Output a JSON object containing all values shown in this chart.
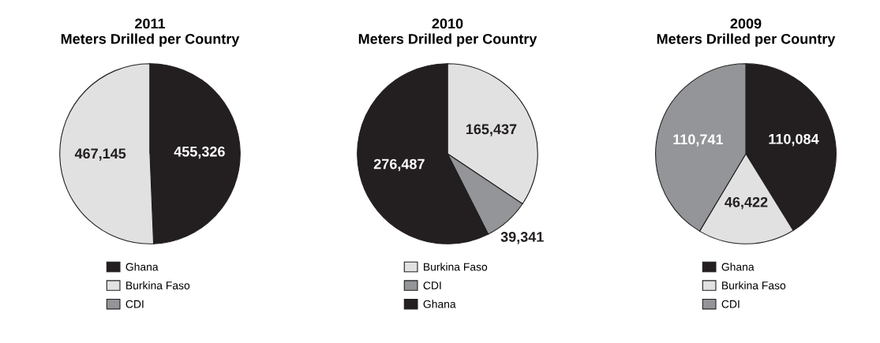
{
  "chart_data": [
    {
      "type": "pie",
      "title": "2011\nMeters Drilled per Country",
      "categories": [
        "Ghana",
        "Burkina Faso",
        "CDI"
      ],
      "values": [
        455326,
        467145,
        0
      ],
      "colors": [
        "#231f20",
        "#e1e1e2",
        "#939598"
      ],
      "value_labels": [
        "455,326",
        "467,145",
        null
      ],
      "legend": "bottom"
    },
    {
      "type": "pie",
      "title": "2010\nMeters Drilled per Country",
      "categories": [
        "Burkina Faso",
        "CDI",
        "Ghana"
      ],
      "values": [
        165437,
        39341,
        276487
      ],
      "colors": [
        "#e1e1e2",
        "#939598",
        "#231f20"
      ],
      "value_labels": [
        "165,437",
        "39,341",
        "276,487"
      ],
      "legend": "bottom"
    },
    {
      "type": "pie",
      "title": "2009\nMeters Drilled per Country",
      "categories": [
        "Ghana",
        "Burkina Faso",
        "CDI"
      ],
      "values": [
        110084,
        46422,
        110741
      ],
      "colors": [
        "#231f20",
        "#e1e1e2",
        "#939598"
      ],
      "value_labels": [
        "110,084",
        "46,422",
        "110,741"
      ],
      "legend": "bottom"
    }
  ]
}
